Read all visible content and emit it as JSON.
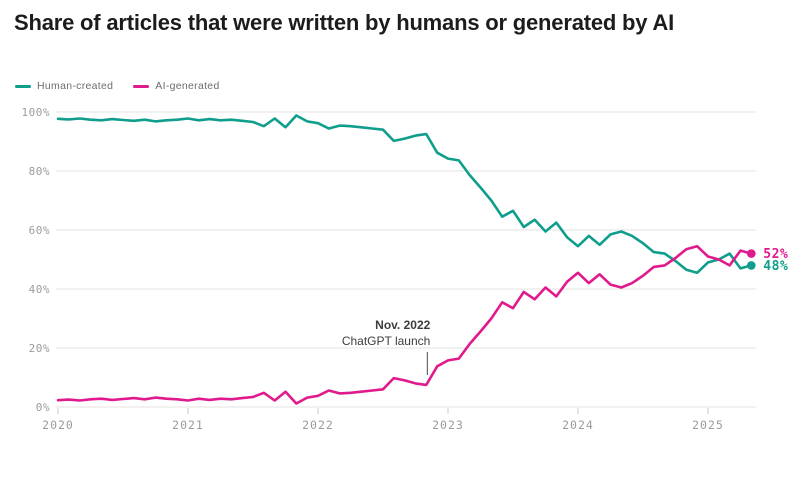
{
  "title": "Share of articles that were written by humans or generated by AI",
  "legend": {
    "items": [
      {
        "label": "Human-created",
        "color": "#0f9e8c"
      },
      {
        "label": "AI-generated",
        "color": "#e01a8d"
      }
    ]
  },
  "chart_data": {
    "type": "line",
    "title": "Share of articles that were written by humans or generated by AI",
    "x_frequency": "monthly",
    "x_start": "2020-01",
    "x_end": "2025-05",
    "x_tick_labels": [
      "2020",
      "2021",
      "2022",
      "2023",
      "2024",
      "2025"
    ],
    "x_tick_month_indices": [
      0,
      12,
      24,
      36,
      48,
      60
    ],
    "y_ticks": [
      0,
      20,
      40,
      60,
      80,
      100
    ],
    "y_tick_labels": [
      "0%",
      "20%",
      "40%",
      "60%",
      "80%",
      "100%"
    ],
    "ylim": [
      0,
      100
    ],
    "grid": "horizontal",
    "legend_position": "top-left",
    "series": [
      {
        "name": "Human-created",
        "color": "#0f9e8c",
        "end_label": "48%",
        "values": [
          97.7,
          97.5,
          97.8,
          97.4,
          97.2,
          97.6,
          97.3,
          97.0,
          97.4,
          96.8,
          97.2,
          97.4,
          97.8,
          97.2,
          97.6,
          97.2,
          97.4,
          97.0,
          96.6,
          95.2,
          97.8,
          94.8,
          98.8,
          96.8,
          96.2,
          94.4,
          95.4,
          95.2,
          94.8,
          94.4,
          94.0,
          90.2,
          91.0,
          92.0,
          92.5,
          86.2,
          84.2,
          83.6,
          78.6,
          74.4,
          70.0,
          64.5,
          66.5,
          61.0,
          63.5,
          59.5,
          62.5,
          57.5,
          54.5,
          58.0,
          55.0,
          58.5,
          59.5,
          58.0,
          55.5,
          52.5,
          52.0,
          49.5,
          46.5,
          45.5,
          49.0,
          50.0,
          52.0,
          47.0,
          48.0
        ]
      },
      {
        "name": "AI-generated",
        "color": "#e01a8d",
        "end_label": "52%",
        "values": [
          2.3,
          2.5,
          2.2,
          2.6,
          2.8,
          2.4,
          2.7,
          3.0,
          2.6,
          3.2,
          2.8,
          2.6,
          2.2,
          2.8,
          2.4,
          2.8,
          2.6,
          3.0,
          3.4,
          4.8,
          2.2,
          5.2,
          1.2,
          3.2,
          3.8,
          5.6,
          4.6,
          4.8,
          5.2,
          5.6,
          6.0,
          9.8,
          9.0,
          8.0,
          7.5,
          13.8,
          15.8,
          16.4,
          21.4,
          25.6,
          30.0,
          35.5,
          33.5,
          39.0,
          36.5,
          40.5,
          37.5,
          42.5,
          45.5,
          42.0,
          45.0,
          41.5,
          40.5,
          42.0,
          44.5,
          47.5,
          48.0,
          50.5,
          53.5,
          54.5,
          51.0,
          50.0,
          48.0,
          53.0,
          52.0
        ]
      }
    ],
    "annotation": {
      "label_line1": "Nov. 2022",
      "label_line2": "ChatGPT launch",
      "x_date": "2022-11",
      "x_month_index": 34
    }
  }
}
